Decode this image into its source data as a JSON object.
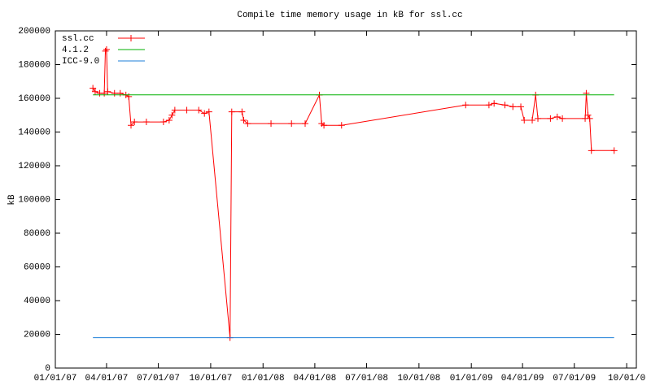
{
  "chart_data": {
    "type": "line",
    "title": "Compile time memory usage in kB for ssl.cc",
    "y_label": "kB",
    "xlim": [
      "2007-01-01",
      "2009-10-18"
    ],
    "ylim": [
      0,
      200000
    ],
    "yticks": [
      0,
      20000,
      40000,
      60000,
      80000,
      100000,
      120000,
      140000,
      160000,
      180000,
      200000
    ],
    "xticks": [
      {
        "value": "2007-01-01",
        "label": "01/01/07"
      },
      {
        "value": "2007-04-01",
        "label": "04/01/07"
      },
      {
        "value": "2007-07-01",
        "label": "07/01/07"
      },
      {
        "value": "2007-10-01",
        "label": "10/01/07"
      },
      {
        "value": "2008-01-01",
        "label": "01/01/08"
      },
      {
        "value": "2008-04-01",
        "label": "04/01/08"
      },
      {
        "value": "2008-07-01",
        "label": "07/01/08"
      },
      {
        "value": "2008-10-01",
        "label": "10/01/08"
      },
      {
        "value": "2009-01-01",
        "label": "01/01/09"
      },
      {
        "value": "2009-04-01",
        "label": "04/01/09"
      },
      {
        "value": "2009-07-01",
        "label": "07/01/09"
      },
      {
        "value": "2009-10-01",
        "label": "10/01/0"
      }
    ],
    "legend": "top-left",
    "series": [
      {
        "name": "ssl.cc",
        "color": "#ff0000",
        "markers": true,
        "x": [
          "2007-03-08",
          "2007-03-12",
          "2007-03-20",
          "2007-03-28",
          "2007-03-30",
          "2007-04-01",
          "2007-04-03",
          "2007-04-15",
          "2007-04-25",
          "2007-05-05",
          "2007-05-10",
          "2007-05-14",
          "2007-05-20",
          "2007-06-10",
          "2007-07-10",
          "2007-07-20",
          "2007-07-25",
          "2007-07-30",
          "2007-08-20",
          "2007-09-10",
          "2007-09-20",
          "2007-09-28",
          "2007-11-04",
          "2007-11-07",
          "2007-11-25",
          "2007-11-28",
          "2007-12-05",
          "2008-01-15",
          "2008-02-20",
          "2008-03-15",
          "2008-04-09",
          "2008-04-13",
          "2008-04-17",
          "2008-05-18",
          "2008-12-22",
          "2009-02-01",
          "2009-02-10",
          "2009-03-01",
          "2009-03-15",
          "2009-03-29",
          "2009-04-04",
          "2009-04-18",
          "2009-04-24",
          "2009-04-28",
          "2009-05-20",
          "2009-06-01",
          "2009-06-10",
          "2009-07-20",
          "2009-07-22",
          "2009-07-25",
          "2009-07-28",
          "2009-07-31",
          "2009-09-09"
        ],
        "values": [
          166000,
          164000,
          163000,
          163000,
          188000,
          189000,
          164000,
          163000,
          163000,
          162000,
          161000,
          144000,
          146000,
          146000,
          146000,
          147000,
          150000,
          153000,
          153000,
          153000,
          151000,
          152000,
          18000,
          152000,
          152000,
          147000,
          145000,
          145000,
          145000,
          145000,
          162000,
          145000,
          144000,
          144000,
          156000,
          156000,
          157000,
          156000,
          155000,
          155000,
          147000,
          147000,
          162000,
          148000,
          148000,
          149000,
          148000,
          148000,
          163000,
          150000,
          148000,
          129000,
          129000
        ]
      },
      {
        "name": "4.1.2",
        "color": "#00b000",
        "markers": false,
        "x": [
          "2007-03-08",
          "2009-09-09"
        ],
        "values": [
          162000,
          162000
        ]
      },
      {
        "name": "ICC-9.0",
        "color": "#1e7fd8",
        "markers": false,
        "x": [
          "2007-03-08",
          "2009-09-09"
        ],
        "values": [
          18000,
          18000
        ]
      }
    ]
  }
}
